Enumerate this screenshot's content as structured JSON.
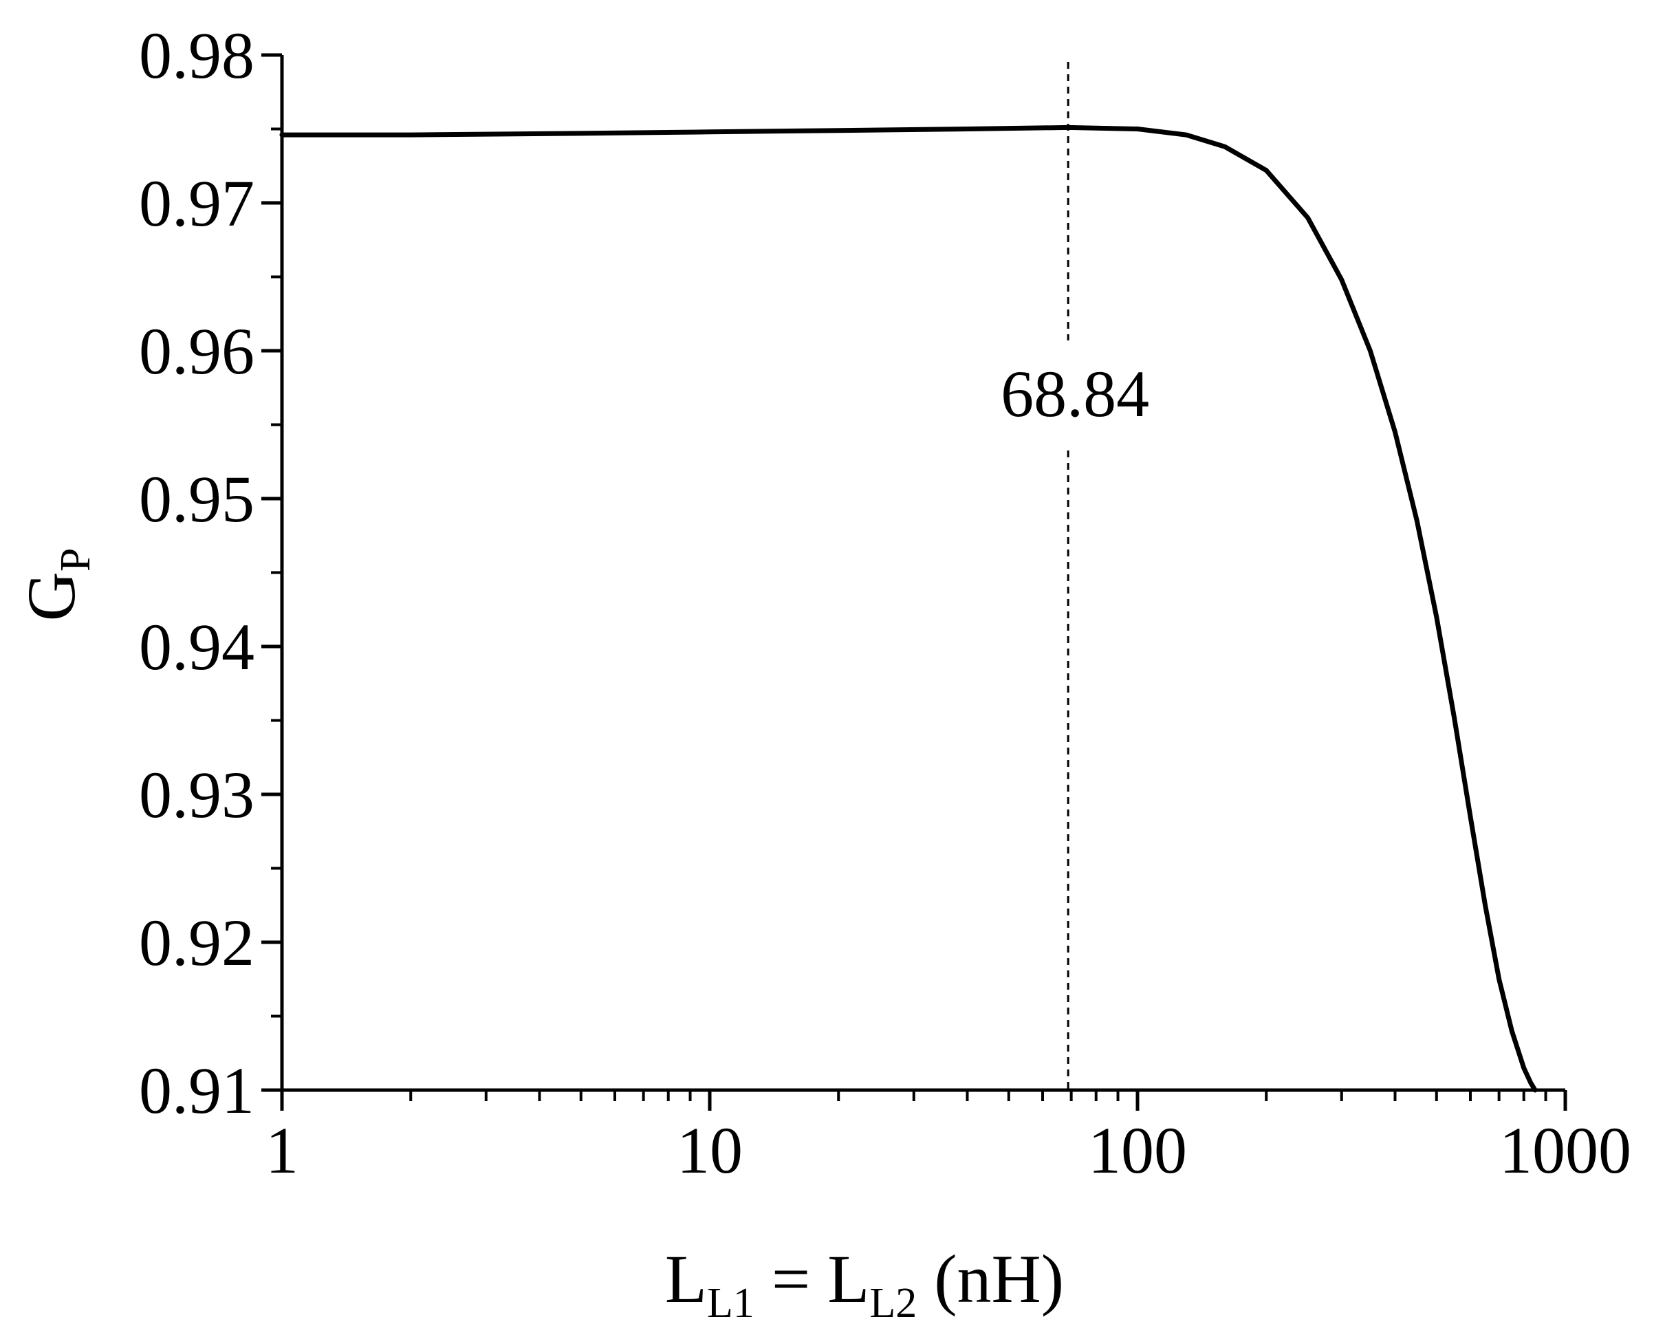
{
  "chart_data": {
    "type": "line",
    "xscale": "log",
    "xlim": [
      1,
      1000
    ],
    "ylim": [
      0.91,
      0.98
    ],
    "xticks": [
      "1",
      "10",
      "100",
      "1000"
    ],
    "yticks": [
      "0.91",
      "0.92",
      "0.93",
      "0.94",
      "0.95",
      "0.96",
      "0.97",
      "0.98"
    ],
    "xlabel": {
      "main1": "L",
      "sub1": "L1",
      "mid": " = L",
      "sub2": "L2",
      "tail": " (nH)"
    },
    "ylabel": {
      "main": "G",
      "sub": "P"
    },
    "grid": false,
    "series": [
      {
        "color": "#000000",
        "x": [
          1,
          2,
          5,
          10,
          20,
          40,
          68.84,
          100,
          130,
          160,
          200,
          250,
          300,
          350,
          400,
          450,
          500,
          550,
          600,
          650,
          700,
          750,
          800,
          830,
          850
        ],
        "y": [
          0.9746,
          0.9746,
          0.9747,
          0.9748,
          0.9749,
          0.975,
          0.9751,
          0.975,
          0.9746,
          0.9738,
          0.9722,
          0.969,
          0.9648,
          0.96,
          0.9545,
          0.9485,
          0.942,
          0.9352,
          0.9285,
          0.9225,
          0.9175,
          0.914,
          0.9115,
          0.9105,
          0.91
        ]
      }
    ],
    "annotations": [
      {
        "text": "68.84",
        "x": 68.84,
        "style": "dashed-vertical-line"
      }
    ]
  }
}
